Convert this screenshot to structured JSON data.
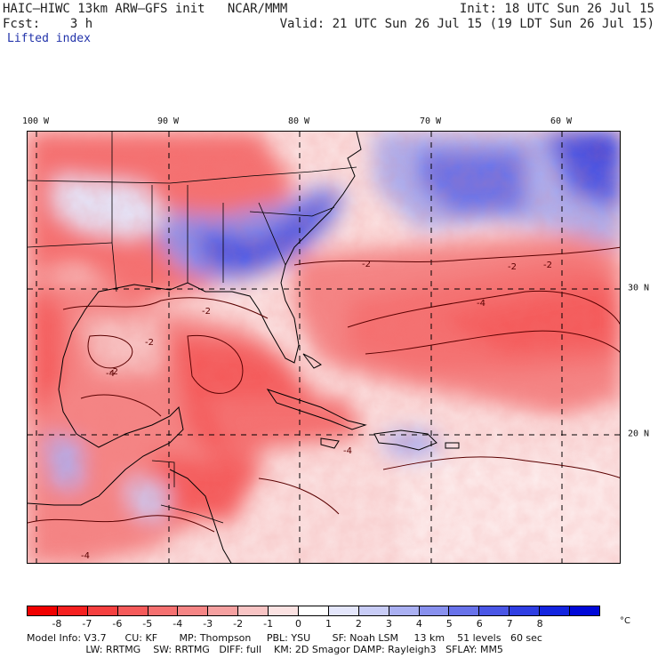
{
  "header": {
    "model_title": "HAIC–HIWC 13km ARW–GFS init   NCAR/MMM",
    "init": "Init: 18 UTC Sun 26 Jul 15",
    "fcst": "Fcst:    3 h",
    "valid": "Valid: 21 UTC Sun 26 Jul 15 (19 LDT Sun 26 Jul 15)",
    "field": "Lifted index"
  },
  "map": {
    "lon_labels": [
      "100 W",
      "90 W",
      "80 W",
      "70 W",
      "60 W"
    ],
    "lat_labels": [
      "30 N",
      "20 N"
    ],
    "contour_labels": [
      "-2",
      "-4"
    ],
    "colors": {
      "land_line": "#000000",
      "contour": "#5a0000"
    }
  },
  "colorbar": {
    "ticks": [
      "-8",
      "-7",
      "-6",
      "-5",
      "-4",
      "-3",
      "-2",
      "-1",
      "0",
      "1",
      "2",
      "3",
      "4",
      "5",
      "6",
      "7",
      "8"
    ],
    "unit": "°C",
    "colors": [
      "#f00000",
      "#f52020",
      "#f54040",
      "#f55a5a",
      "#f57070",
      "#f58585",
      "#f5a0a0",
      "#f8c4c4",
      "#fbe2e2",
      "#ffffff",
      "#e4e6fb",
      "#c8ccf6",
      "#aab0f2",
      "#8890ee",
      "#6872ea",
      "#4a56e6",
      "#2f3ee3",
      "#1324e0",
      "#0008d8"
    ]
  },
  "model_info": {
    "line1": "Model Info: V3.7      CU: KF       MP: Thompson     PBL: YSU       SF: Noah LSM     13 km    51 levels   60 sec",
    "line2": "                   LW: RRTMG    SW: RRTMG   DIFF: full    KM: 2D Smagor DAMP: Rayleigh3   SFLAY: MM5"
  }
}
